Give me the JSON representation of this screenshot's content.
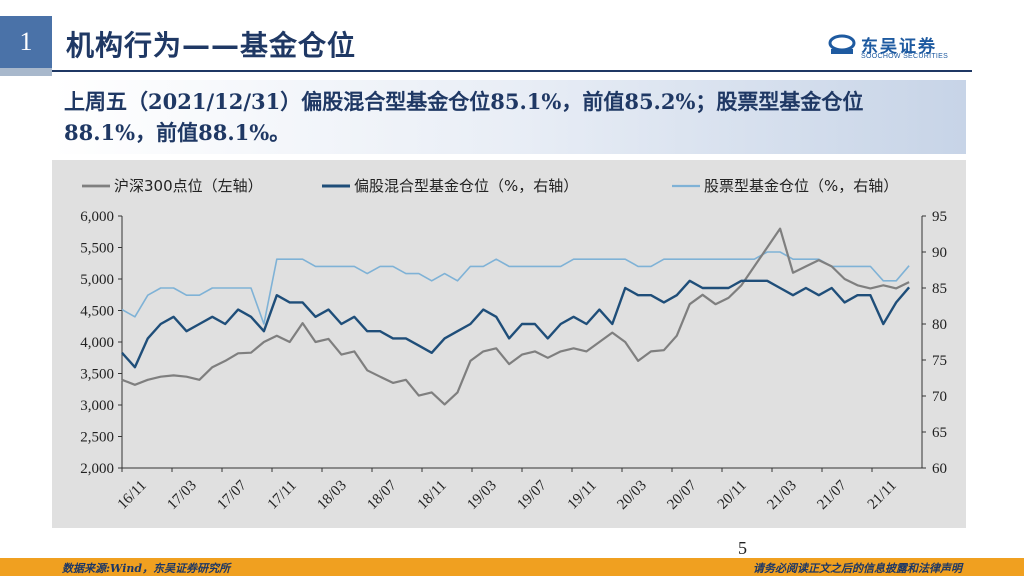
{
  "slide": {
    "number": "1",
    "title": "机构行为——基金仓位",
    "page": "5"
  },
  "logo": {
    "name": "东吴证券",
    "sub": "SOOCHOW SECURITIES"
  },
  "summary": {
    "text": "上周五（2021/12/31）偏股混合型基金仓位85.1%，前值85.2%；股票型基金仓位88.1%，前值88.1%。"
  },
  "footer": {
    "source": "数据来源:Wind，东吴证券研究所",
    "disclaimer": "请务必阅读正文之后的信息披露和法律声明"
  },
  "colors": {
    "csi300": "#7f7f7f",
    "hybrid": "#1f4e79",
    "stock": "#7fb2d6",
    "accent": "#4a72a8",
    "footer": "#f0a020"
  },
  "chart_data": {
    "type": "line",
    "legend_position": "top",
    "grid": false,
    "x_tick_labels": [
      "16/11",
      "17/03",
      "17/07",
      "17/11",
      "18/03",
      "18/07",
      "18/11",
      "19/03",
      "19/07",
      "19/11",
      "20/03",
      "20/07",
      "20/11",
      "21/03",
      "21/07",
      "21/11"
    ],
    "x_range": [
      "2016-11",
      "2022-01"
    ],
    "y_left": {
      "min": 2000,
      "max": 6000,
      "ticks": [
        "2,000",
        "2,500",
        "3,000",
        "3,500",
        "4,000",
        "4,500",
        "5,000",
        "5,500",
        "6,000"
      ]
    },
    "y_right": {
      "min": 60,
      "max": 95,
      "ticks": [
        "60",
        "65",
        "70",
        "75",
        "80",
        "85",
        "90",
        "95"
      ]
    },
    "series": [
      {
        "name": "沪深300点位（左轴）",
        "axis": "left",
        "x": [
          "2016-11",
          "2016-12",
          "2017-01",
          "2017-02",
          "2017-03",
          "2017-04",
          "2017-05",
          "2017-06",
          "2017-07",
          "2017-08",
          "2017-09",
          "2017-10",
          "2017-11",
          "2017-12",
          "2018-01",
          "2018-02",
          "2018-03",
          "2018-04",
          "2018-05",
          "2018-06",
          "2018-07",
          "2018-08",
          "2018-09",
          "2018-10",
          "2018-11",
          "2018-12",
          "2019-01",
          "2019-02",
          "2019-03",
          "2019-04",
          "2019-05",
          "2019-06",
          "2019-07",
          "2019-08",
          "2019-09",
          "2019-10",
          "2019-11",
          "2019-12",
          "2020-01",
          "2020-02",
          "2020-03",
          "2020-04",
          "2020-05",
          "2020-06",
          "2020-07",
          "2020-08",
          "2020-09",
          "2020-10",
          "2020-11",
          "2020-12",
          "2021-01",
          "2021-02",
          "2021-03",
          "2021-04",
          "2021-05",
          "2021-06",
          "2021-07",
          "2021-08",
          "2021-09",
          "2021-10",
          "2021-11",
          "2021-12"
        ],
        "values": [
          3400,
          3320,
          3400,
          3450,
          3470,
          3450,
          3400,
          3600,
          3700,
          3820,
          3830,
          4000,
          4100,
          4000,
          4300,
          4000,
          4050,
          3800,
          3850,
          3550,
          3450,
          3350,
          3400,
          3150,
          3200,
          3010,
          3200,
          3700,
          3850,
          3900,
          3650,
          3800,
          3850,
          3750,
          3850,
          3900,
          3850,
          4000,
          4150,
          4000,
          3700,
          3850,
          3870,
          4100,
          4600,
          4750,
          4600,
          4700,
          4900,
          5200,
          5500,
          5800,
          5100,
          5200,
          5300,
          5200,
          5000,
          4900,
          4850,
          4900,
          4850,
          4950
        ]
      },
      {
        "name": "偏股混合型基金仓位（%，右轴）",
        "axis": "right",
        "x": [
          "2016-11",
          "2016-12",
          "2017-01",
          "2017-02",
          "2017-03",
          "2017-04",
          "2017-05",
          "2017-06",
          "2017-07",
          "2017-08",
          "2017-09",
          "2017-10",
          "2017-11",
          "2017-12",
          "2018-01",
          "2018-02",
          "2018-03",
          "2018-04",
          "2018-05",
          "2018-06",
          "2018-07",
          "2018-08",
          "2018-09",
          "2018-10",
          "2018-11",
          "2018-12",
          "2019-01",
          "2019-02",
          "2019-03",
          "2019-04",
          "2019-05",
          "2019-06",
          "2019-07",
          "2019-08",
          "2019-09",
          "2019-10",
          "2019-11",
          "2019-12",
          "2020-01",
          "2020-02",
          "2020-03",
          "2020-04",
          "2020-05",
          "2020-06",
          "2020-07",
          "2020-08",
          "2020-09",
          "2020-10",
          "2020-11",
          "2020-12",
          "2021-01",
          "2021-02",
          "2021-03",
          "2021-04",
          "2021-05",
          "2021-06",
          "2021-07",
          "2021-08",
          "2021-09",
          "2021-10",
          "2021-11",
          "2021-12"
        ],
        "values": [
          76,
          74,
          78,
          80,
          81,
          79,
          80,
          81,
          80,
          82,
          81,
          79,
          84,
          83,
          83,
          81,
          82,
          80,
          81,
          79,
          79,
          78,
          78,
          77,
          76,
          78,
          79,
          80,
          82,
          81,
          78,
          80,
          80,
          78,
          80,
          81,
          80,
          82,
          80,
          85,
          84,
          84,
          83,
          84,
          86,
          85,
          85,
          85,
          86,
          86,
          86,
          85,
          84,
          85,
          84,
          85,
          83,
          84,
          84,
          80,
          83,
          85.1
        ]
      },
      {
        "name": "股票型基金仓位（%，右轴）",
        "axis": "right",
        "x": [
          "2016-11",
          "2016-12",
          "2017-01",
          "2017-02",
          "2017-03",
          "2017-04",
          "2017-05",
          "2017-06",
          "2017-07",
          "2017-08",
          "2017-09",
          "2017-10",
          "2017-11",
          "2017-12",
          "2018-01",
          "2018-02",
          "2018-03",
          "2018-04",
          "2018-05",
          "2018-06",
          "2018-07",
          "2018-08",
          "2018-09",
          "2018-10",
          "2018-11",
          "2018-12",
          "2019-01",
          "2019-02",
          "2019-03",
          "2019-04",
          "2019-05",
          "2019-06",
          "2019-07",
          "2019-08",
          "2019-09",
          "2019-10",
          "2019-11",
          "2019-12",
          "2020-01",
          "2020-02",
          "2020-03",
          "2020-04",
          "2020-05",
          "2020-06",
          "2020-07",
          "2020-08",
          "2020-09",
          "2020-10",
          "2020-11",
          "2020-12",
          "2021-01",
          "2021-02",
          "2021-03",
          "2021-04",
          "2021-05",
          "2021-06",
          "2021-07",
          "2021-08",
          "2021-09",
          "2021-10",
          "2021-11",
          "2021-12"
        ],
        "values": [
          82,
          81,
          84,
          85,
          85,
          84,
          84,
          85,
          85,
          85,
          85,
          80,
          89,
          89,
          89,
          88,
          88,
          88,
          88,
          87,
          88,
          88,
          87,
          87,
          86,
          87,
          86,
          88,
          88,
          89,
          88,
          88,
          88,
          88,
          88,
          89,
          89,
          89,
          89,
          89,
          88,
          88,
          89,
          89,
          89,
          89,
          89,
          89,
          89,
          89,
          90,
          90,
          89,
          89,
          89,
          88,
          88,
          88,
          88,
          86,
          86,
          88.1
        ]
      }
    ]
  }
}
